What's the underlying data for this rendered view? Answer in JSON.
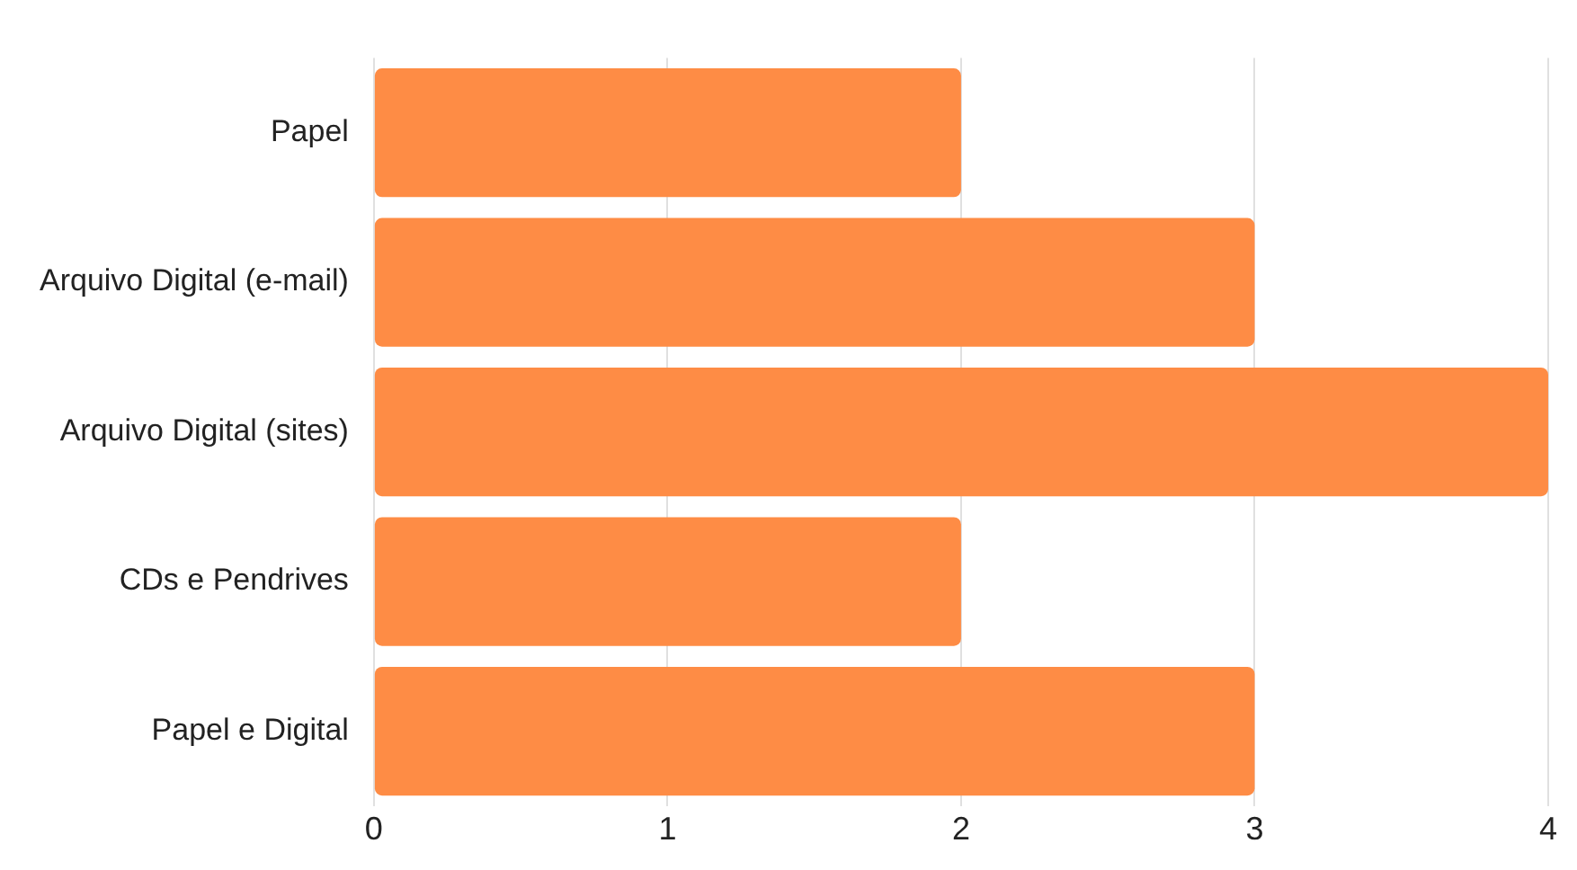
{
  "chart_data": {
    "type": "bar",
    "orientation": "horizontal",
    "categories": [
      "Papel",
      "Arquivo Digital (e-mail)",
      "Arquivo Digital (sites)",
      "CDs e Pendrives",
      "Papel e Digital"
    ],
    "values": [
      2,
      3,
      4,
      2,
      3
    ],
    "color": "#fe8c45",
    "xlim": [
      0,
      4
    ],
    "xticks": [
      0,
      1,
      2,
      3,
      4
    ],
    "grid": "x",
    "legend": false
  }
}
